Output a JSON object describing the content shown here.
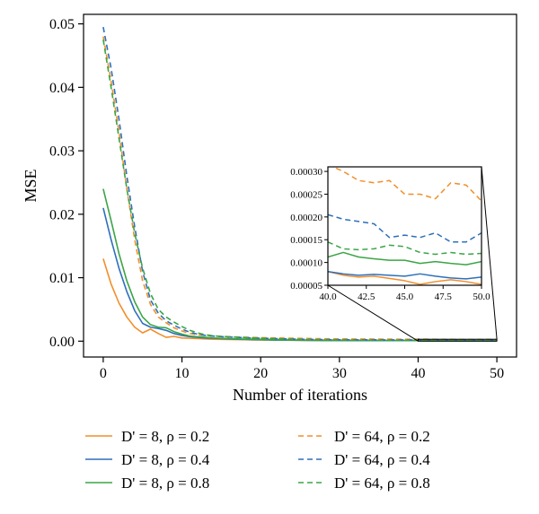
{
  "chart_data": {
    "type": "line",
    "xlabel": "Number of iterations",
    "ylabel": "MSE",
    "xlim": [
      -2.5,
      52.5
    ],
    "ylim": [
      -0.0025,
      0.0515
    ],
    "xticks": [
      0,
      10,
      20,
      30,
      40,
      50
    ],
    "xtick_labels": [
      "0",
      "10",
      "20",
      "30",
      "40",
      "50"
    ],
    "yticks": [
      0.0,
      0.01,
      0.02,
      0.03,
      0.04,
      0.05
    ],
    "ytick_labels": [
      "0.00",
      "0.01",
      "0.02",
      "0.03",
      "0.04",
      "0.05"
    ],
    "grid": false,
    "legend_position": "bottom",
    "inset": {
      "xlim": [
        40,
        50
      ],
      "ylim": [
        5e-05,
        0.00031
      ],
      "xticks": [
        40,
        42.5,
        45,
        47.5,
        50
      ],
      "xtick_labels": [
        "40.0",
        "42.5",
        "45.0",
        "47.5",
        "50.0"
      ],
      "yticks": [
        5e-05,
        0.0001,
        0.00015,
        0.0002,
        0.00025,
        0.0003
      ],
      "ytick_labels": [
        "0.00005",
        "0.00010",
        "0.00015",
        "0.00020",
        "0.00025",
        "0.00030"
      ],
      "zoom_region": {
        "x": [
          40,
          50
        ],
        "y": [
          0,
          0.0003
        ]
      }
    },
    "series": [
      {
        "name": "D' = 8, ρ = 0.2",
        "color": "#f28e2b",
        "dash": "solid",
        "values": [
          0.013,
          0.009,
          0.006,
          0.0038,
          0.0022,
          0.0013,
          0.0019,
          0.0012,
          0.0006,
          0.00075,
          0.0005,
          0.00045,
          0.0004,
          0.00035,
          0.0003,
          0.00028,
          0.00026,
          0.00024,
          0.00022,
          0.0002,
          0.00018,
          0.00017,
          0.00016,
          0.00015,
          0.00014,
          0.00013,
          0.00012,
          0.00011,
          0.0001,
          0.0001,
          9e-05,
          9e-05,
          9e-05,
          8e-05,
          8e-05,
          8e-05,
          8e-05,
          8e-05,
          8e-05,
          8e-05,
          8e-05,
          7.2e-05,
          6.8e-05,
          7e-05,
          6.5e-05,
          6e-05,
          5.2e-05,
          5.8e-05,
          6.2e-05,
          5.8e-05,
          5.2e-05
        ]
      },
      {
        "name": "D' = 8, ρ = 0.4",
        "color": "#2e6fba",
        "dash": "solid",
        "values": [
          0.021,
          0.016,
          0.0115,
          0.0078,
          0.0048,
          0.0028,
          0.0022,
          0.002,
          0.0017,
          0.0012,
          0.0009,
          0.0007,
          0.0006,
          0.0005,
          0.00045,
          0.0004,
          0.00035,
          0.0003,
          0.00028,
          0.00025,
          0.00022,
          0.0002,
          0.00018,
          0.00016,
          0.00015,
          0.00014,
          0.00013,
          0.00012,
          0.00011,
          0.0001,
          0.0001,
          9e-05,
          9e-05,
          9e-05,
          8e-05,
          8e-05,
          8e-05,
          8e-05,
          8e-05,
          8e-05,
          8e-05,
          7.5e-05,
          7.2e-05,
          7.4e-05,
          7.2e-05,
          7e-05,
          7.5e-05,
          7e-05,
          6.6e-05,
          6.4e-05,
          6.8e-05
        ]
      },
      {
        "name": "D' = 8, ρ = 0.8",
        "color": "#3aa545",
        "dash": "solid",
        "values": [
          0.024,
          0.019,
          0.0138,
          0.0095,
          0.0062,
          0.0038,
          0.0026,
          0.0022,
          0.0021,
          0.0015,
          0.0011,
          0.0008,
          0.0007,
          0.0006,
          0.0005,
          0.00045,
          0.0004,
          0.00036,
          0.00032,
          0.00028,
          0.00025,
          0.00022,
          0.0002,
          0.00018,
          0.00017,
          0.00016,
          0.00015,
          0.00014,
          0.00013,
          0.00013,
          0.00012,
          0.00012,
          0.00012,
          0.00012,
          0.00012,
          0.00012,
          0.00011,
          0.00011,
          0.00011,
          0.00011,
          0.000112,
          0.000122,
          0.000112,
          0.000108,
          0.000105,
          0.000105,
          9.8e-05,
          0.000102,
          9.8e-05,
          9.5e-05,
          0.000102
        ]
      },
      {
        "name": "D' = 64, ρ = 0.2",
        "color": "#f28e2b",
        "dash": "dashed",
        "values": [
          0.048,
          0.041,
          0.033,
          0.024,
          0.016,
          0.0095,
          0.0058,
          0.0038,
          0.0029,
          0.0021,
          0.0016,
          0.0012,
          0.001,
          0.0009,
          0.0008,
          0.00075,
          0.0007,
          0.00066,
          0.00062,
          0.00058,
          0.00055,
          0.00052,
          0.0005,
          0.00048,
          0.00046,
          0.00044,
          0.00042,
          0.0004,
          0.00038,
          0.00037,
          0.00036,
          0.00035,
          0.00034,
          0.00033,
          0.00033,
          0.00032,
          0.00032,
          0.00031,
          0.00031,
          0.00031,
          0.000315,
          0.0003,
          0.00028,
          0.000275,
          0.00028,
          0.00025,
          0.00025,
          0.00024,
          0.000275,
          0.00027,
          0.000235
        ]
      },
      {
        "name": "D' = 64, ρ = 0.4",
        "color": "#2e6fba",
        "dash": "dashed",
        "values": [
          0.0495,
          0.043,
          0.035,
          0.026,
          0.018,
          0.011,
          0.0065,
          0.0044,
          0.0032,
          0.0025,
          0.0019,
          0.0014,
          0.0011,
          0.0009,
          0.0008,
          0.0007,
          0.00065,
          0.0006,
          0.00055,
          0.0005,
          0.00046,
          0.00042,
          0.00039,
          0.00036,
          0.00033,
          0.0003,
          0.00028,
          0.00026,
          0.00025,
          0.00024,
          0.00023,
          0.00022,
          0.00022,
          0.00021,
          0.00021,
          0.00021,
          0.0002,
          0.0002,
          0.0002,
          0.0002,
          0.000205,
          0.000195,
          0.00019,
          0.000185,
          0.000155,
          0.00016,
          0.000155,
          0.000165,
          0.000145,
          0.000145,
          0.000165
        ]
      },
      {
        "name": "D' = 64, ρ = 0.8",
        "color": "#3aa545",
        "dash": "dashed",
        "values": [
          0.0475,
          0.04,
          0.032,
          0.024,
          0.017,
          0.0115,
          0.0075,
          0.005,
          0.0038,
          0.003,
          0.0023,
          0.0017,
          0.0013,
          0.001,
          0.00085,
          0.00075,
          0.00068,
          0.00062,
          0.00056,
          0.0005,
          0.00045,
          0.0004,
          0.00036,
          0.00032,
          0.00029,
          0.00026,
          0.00024,
          0.00022,
          0.0002,
          0.00019,
          0.00018,
          0.00017,
          0.00016,
          0.00016,
          0.00015,
          0.00015,
          0.00015,
          0.00015,
          0.00015,
          0.00015,
          0.000145,
          0.00013,
          0.000128,
          0.00013,
          0.000138,
          0.000135,
          0.000122,
          0.000118,
          0.000122,
          0.000118,
          0.00012
        ]
      }
    ]
  }
}
